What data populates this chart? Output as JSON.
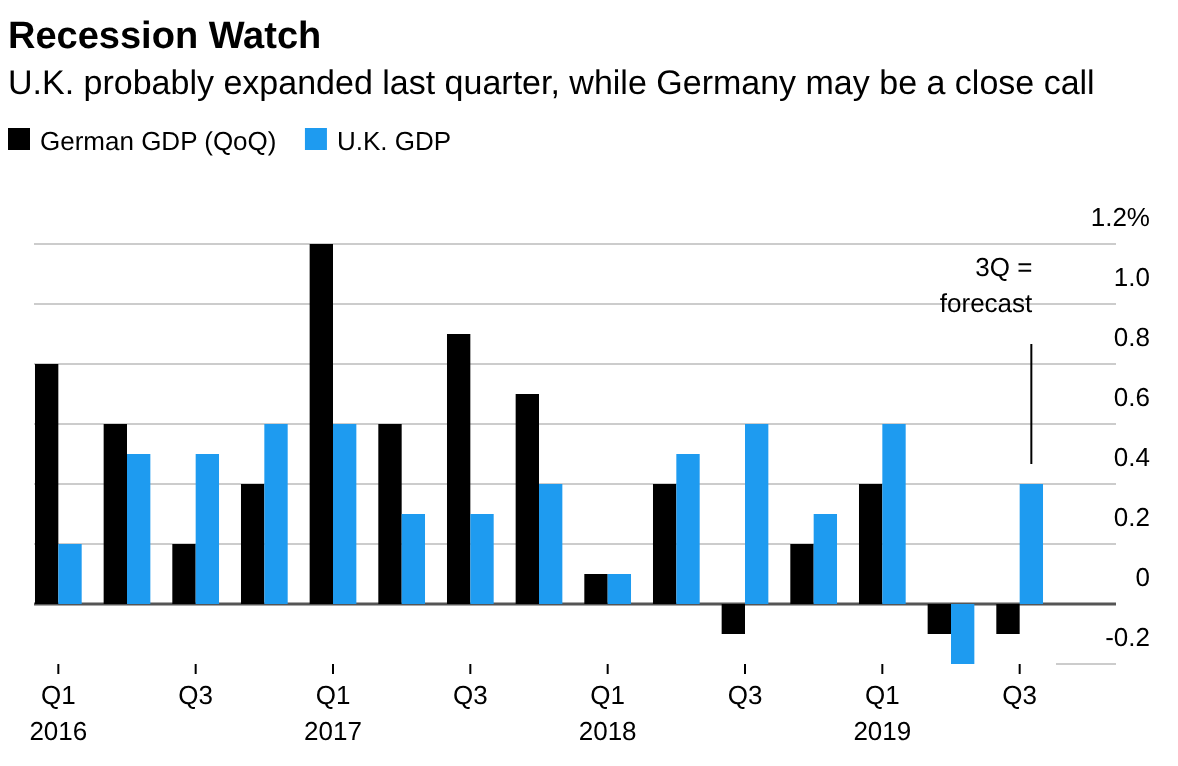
{
  "chart_data": {
    "type": "bar",
    "title": "Recession Watch",
    "subtitle": "U.K. probably expanded last quarter, while Germany may be a close call",
    "categories": [
      "Q1\n2016",
      null,
      "Q3",
      null,
      "Q1\n2017",
      null,
      "Q3",
      null,
      "Q1\n2018",
      null,
      "Q3",
      null,
      "Q1\n2019",
      null,
      "Q3"
    ],
    "series": [
      {
        "name": "German GDP (QoQ)",
        "color": "#000000",
        "values": [
          0.8,
          0.6,
          0.2,
          0.4,
          1.2,
          0.6,
          0.9,
          0.7,
          0.1,
          0.4,
          -0.1,
          0.2,
          0.4,
          -0.1,
          -0.1
        ]
      },
      {
        "name": "U.K. GDP",
        "color": "#1e9bf0",
        "values": [
          0.2,
          0.5,
          0.5,
          0.6,
          0.6,
          0.3,
          0.3,
          0.4,
          0.1,
          0.5,
          0.6,
          0.3,
          0.6,
          -0.2,
          0.4
        ]
      }
    ],
    "ylim": [
      -0.2,
      1.2
    ],
    "yticks": [
      {
        "value": 1.2,
        "label": "1.2%"
      },
      {
        "value": 1,
        "label": "1.0"
      },
      0.8,
      0.6,
      0.4,
      0.2,
      0,
      -0.2
    ],
    "grid": "y",
    "legend": "top left",
    "annotations": [
      "3Q =\nforecast"
    ]
  }
}
